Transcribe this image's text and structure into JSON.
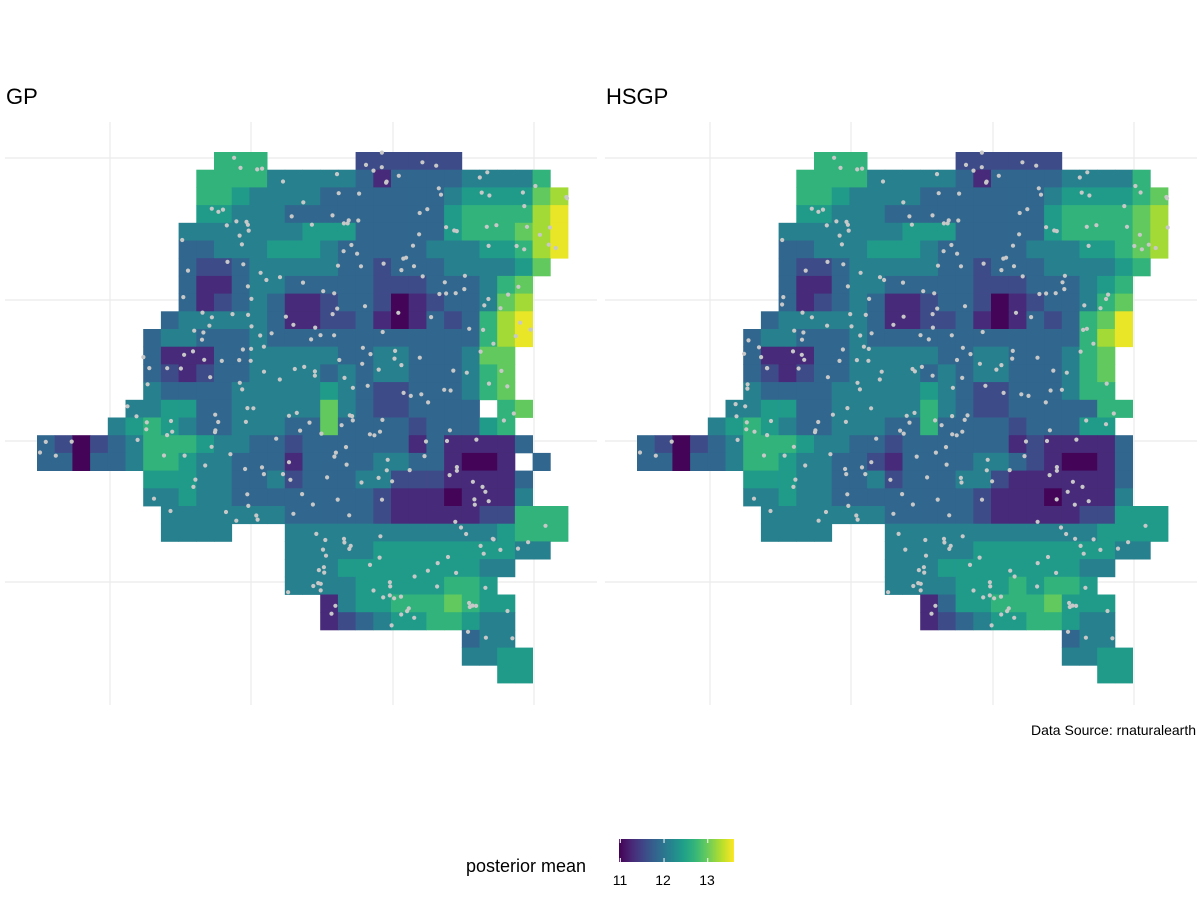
{
  "chart_data": {
    "type": "heatmap",
    "value_encoding": {
      "base": 11.0,
      "step": 0.28,
      "empty": "."
    },
    "color_scale": "viridis",
    "color_range": [
      10.97,
      13.6
    ],
    "panels": [
      {
        "title": "GP",
        "grid": [
          "..........666.....222222......",
          ".........66664444431333344446.",
          ".........665444433333334555578",
          ".........554443333333335666689",
          "........4444444555333335666789",
          "........3344455543333344455689",
          "........322344444332333444457.",
          "........31134433333222333467..",
          "........31234311233201233478..",
          ".......344444311223101323689..",
          "......3443334333333333333689..",
          "......311133444443344333477...",
          "......321233444434344333467...",
          "......433334444454322333467...",
          ".....44553344444743223333 67...",
          "....45654334443373333233356...",
          "3202346665443323333331311113..",
          "330334665443331333344331001 3..",
          "......5554433423334422211113..",
          "......4454433333333211101114..",
          ".......44444443333321111122666",
          ".......4444...4444444444445666",
          "..............444445555555544.",
          "..............4445555555544...",
          "..............444455555665....",
          "................14556667655...",
          "................12345566544...",
          "........................344...",
          "........................4455..",
          "..........................55.."
        ]
      },
      {
        "title": "HSGP",
        "grid": [
          "..........666.....222222......",
          ".........66664444431333344446.",
          ".........665444433333334555567",
          ".........554443333333335666678",
          "........4444444555333335666678",
          "........3344455543333344455678",
          "........322344444332333444456.",
          "........31134433333222333456..",
          "........31234311233201233467..",
          ".......344444311223101323679..",
          "......3443334333333333333689..",
          "......311133444443344333467...",
          "......321233444434344333467...",
          "......433334444454322333466...",
          ".....44553344444643223333366...",
          "....45654334443363333233355...",
          "3202346665443323333331211113..",
          "3303346654433213333443210013..",
          "......5554433423334421111113..",
          "......4454433333333211101114..",
          ".......44444443333321111122555",
          ".......4444...4444444444445555",
          "..............444445555555544.",
          "..............4445555555544...",
          "..............444455565665....",
          "................13556667555...",
          "................12345566544...",
          "........................344...",
          "........................4455..",
          "..........................55.."
        ]
      }
    ],
    "legend": {
      "title": "posterior mean",
      "ticks": [
        "11",
        "12",
        "13"
      ],
      "tick_values": [
        11,
        12,
        13
      ],
      "placement": "bottom"
    },
    "caption": "Data Source: rnaturalearth",
    "xlabel": "",
    "ylabel": ""
  },
  "colors": {
    "grid": "#ebebeb",
    "points": "#c8c8c8",
    "border": "#000000"
  }
}
